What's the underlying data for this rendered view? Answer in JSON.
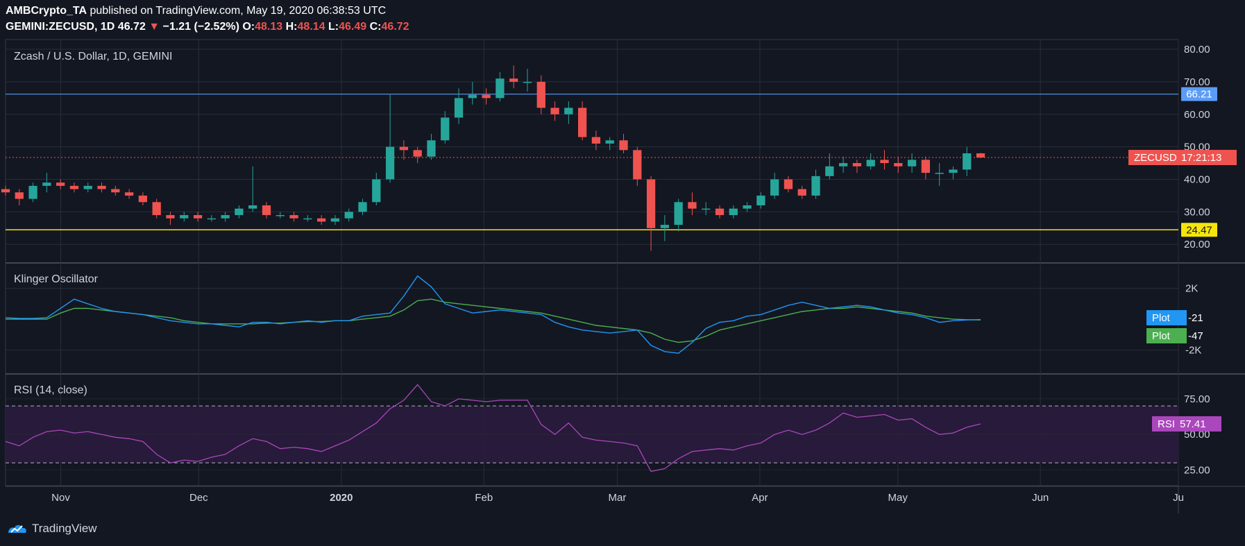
{
  "header": {
    "publisher": "AMBCrypto_TA",
    "published_text": "published on TradingView.com, May 19, 2020 06:38:53 UTC",
    "symbol": "GEMINI:ZECUSD, 1D",
    "last": "46.72",
    "change_arrow": "▼",
    "change": "−1.21 (−2.52%)",
    "o_label": "O:",
    "o_value": "48.13",
    "h_label": "H:",
    "h_value": "48.14",
    "l_label": "L:",
    "l_value": "46.49",
    "c_label": "C:",
    "c_value": "46.72"
  },
  "footer": {
    "brand": "TradingView",
    "logo_icon": "tradingview-logo-icon"
  },
  "colors": {
    "background": "#131722",
    "grid": "#2a2e39",
    "up": "#26a69a",
    "down": "#ef5350",
    "resistance": "#5b9cf6",
    "support": "#f5e50a",
    "klinger": "#2196f3",
    "signal": "#4caf50",
    "rsi": "#ab47bc",
    "rsi_band": "#2a1b3d"
  },
  "chart_data": [
    {
      "type": "candlestick",
      "title": "Zcash / U.S. Dollar, 1D, GEMINI",
      "x": [
        "Oct 20",
        "Oct 23",
        "Oct 26",
        "Oct 29",
        "Nov 1",
        "Nov 4",
        "Nov 7",
        "Nov 10",
        "Nov 13",
        "Nov 16",
        "Nov 19",
        "Nov 22",
        "Nov 25",
        "Nov 28",
        "Dec 1",
        "Dec 4",
        "Dec 7",
        "Dec 10",
        "Dec 13",
        "Dec 16",
        "Dec 19",
        "Dec 22",
        "Dec 25",
        "Dec 28",
        "Dec 31",
        "Jan 3",
        "Jan 6",
        "Jan 9",
        "Jan 12",
        "Jan 15",
        "Jan 18",
        "Jan 21",
        "Jan 24",
        "Jan 27",
        "Jan 30",
        "Feb 2",
        "Feb 5",
        "Feb 8",
        "Feb 11",
        "Feb 14",
        "Feb 17",
        "Feb 20",
        "Feb 23",
        "Feb 26",
        "Feb 29",
        "Mar 3",
        "Mar 6",
        "Mar 9",
        "Mar 12",
        "Mar 15",
        "Mar 18",
        "Mar 21",
        "Mar 24",
        "Mar 27",
        "Mar 30",
        "Apr 2",
        "Apr 5",
        "Apr 8",
        "Apr 11",
        "Apr 14",
        "Apr 17",
        "Apr 20",
        "Apr 23",
        "Apr 26",
        "Apr 29",
        "May 2",
        "May 5",
        "May 8",
        "May 11",
        "May 14",
        "May 17",
        "May 19"
      ],
      "open": [
        37,
        36,
        34,
        38,
        39,
        38,
        37,
        38,
        37,
        36,
        35,
        33,
        29,
        28,
        29,
        28,
        28,
        29,
        31,
        32,
        29,
        29,
        28,
        28,
        27,
        28,
        30,
        33,
        40,
        50,
        49,
        47,
        52,
        59,
        65,
        66,
        65,
        71,
        70,
        70,
        62,
        60,
        62,
        53,
        51,
        52,
        49,
        40,
        25,
        26,
        33,
        31,
        31,
        29,
        31,
        32,
        35,
        40,
        37,
        35,
        41,
        44,
        45,
        44,
        46,
        45,
        44,
        46,
        42,
        42,
        43,
        48
      ],
      "close": [
        36,
        34,
        38,
        39,
        38,
        37,
        38,
        37,
        36,
        35,
        33,
        29,
        28,
        29,
        28,
        28,
        29,
        31,
        32,
        29,
        29,
        28,
        28,
        27,
        28,
        30,
        33,
        40,
        50,
        49,
        47,
        52,
        59,
        65,
        66,
        65,
        71,
        70,
        70,
        62,
        60,
        62,
        53,
        51,
        52,
        49,
        40,
        25,
        26,
        33,
        31,
        31,
        29,
        31,
        32,
        35,
        40,
        37,
        35,
        41,
        44,
        45,
        44,
        46,
        45,
        44,
        46,
        42,
        42,
        43,
        48,
        46.72
      ],
      "high": [
        38,
        37,
        39,
        42,
        40,
        39,
        39,
        39,
        38,
        37,
        36,
        34,
        30,
        30,
        30,
        29,
        30,
        32,
        44,
        33,
        30,
        30,
        29,
        29,
        29,
        31,
        34,
        42,
        66,
        52,
        50,
        54,
        61,
        68,
        70,
        68,
        73,
        75,
        74,
        72,
        64,
        64,
        64,
        55,
        53,
        54,
        50,
        41,
        29,
        34,
        36,
        33,
        32,
        32,
        33,
        36,
        42,
        41,
        38,
        43,
        48,
        47,
        46,
        48,
        49,
        47,
        48,
        47,
        45,
        44,
        50,
        48.14
      ],
      "low": [
        35,
        32,
        33,
        36,
        37,
        36,
        36,
        36,
        35,
        34,
        32,
        28,
        26,
        27,
        27,
        27,
        27,
        28,
        30,
        28,
        28,
        27,
        27,
        26,
        26,
        27,
        29,
        32,
        39,
        46,
        45,
        46,
        51,
        57,
        63,
        63,
        64,
        68,
        67,
        60,
        58,
        57,
        52,
        49,
        49,
        48,
        38,
        18,
        21,
        24,
        29,
        29,
        28,
        28,
        30,
        31,
        34,
        36,
        34,
        34,
        40,
        42,
        42,
        43,
        43,
        42,
        42,
        40,
        38,
        40,
        41,
        46.49
      ],
      "y_ticks": [
        20,
        30,
        40,
        50,
        60,
        70,
        80
      ],
      "y_tick_labels": [
        "20.00",
        "30.00",
        "40.00",
        "50.00",
        "60.00",
        "70.00",
        "80.00"
      ],
      "ylim": [
        14.5,
        83
      ],
      "x_tick_labels": [
        "Nov",
        "Dec",
        "2020",
        "Feb",
        "Mar",
        "Apr",
        "May",
        "Jun",
        "Ju"
      ],
      "x_tick_dates": [
        "2019-11-01",
        "2019-12-01",
        "2020-01-01",
        "2020-02-01",
        "2020-03-01",
        "2020-04-01",
        "2020-05-01",
        "2020-06-01",
        "2020-07-01"
      ],
      "x_range": [
        "2019-10-20",
        "2020-07-01"
      ],
      "levels": [
        {
          "name": "resistance",
          "value": 66.21,
          "label": "66.21"
        },
        {
          "name": "support",
          "value": 24.47,
          "label": "24.47"
        }
      ],
      "price_line": {
        "value": 46.72,
        "symbol_label": "ZECUSD",
        "countdown": "17:21:13"
      }
    },
    {
      "type": "line",
      "title": "Klinger Oscillator",
      "series": [
        {
          "name": "Plot",
          "values": [
            100,
            50,
            50,
            100,
            700,
            1300,
            1000,
            700,
            500,
            400,
            300,
            100,
            -100,
            -200,
            -300,
            -300,
            -400,
            -500,
            -200,
            -200,
            -300,
            -200,
            -100,
            -200,
            -100,
            -100,
            200,
            300,
            400,
            1500,
            2800,
            2100,
            1000,
            700,
            400,
            500,
            600,
            500,
            400,
            300,
            -200,
            -500,
            -700,
            -800,
            -900,
            -800,
            -700,
            -1700,
            -2100,
            -2200,
            -1500,
            -600,
            -200,
            -100,
            200,
            300,
            600,
            900,
            1100,
            900,
            700,
            800,
            900,
            800,
            600,
            400,
            300,
            100,
            -200,
            -100,
            -50,
            -21
          ],
          "last_label": "-21"
        },
        {
          "name": "Plot",
          "values": [
            0,
            0,
            0,
            0,
            400,
            700,
            700,
            600,
            500,
            400,
            300,
            200,
            100,
            -100,
            -200,
            -300,
            -300,
            -300,
            -300,
            -250,
            -250,
            -200,
            -150,
            -150,
            -100,
            -100,
            0,
            100,
            200,
            600,
            1200,
            1300,
            1100,
            1000,
            900,
            800,
            700,
            600,
            500,
            400,
            200,
            0,
            -200,
            -400,
            -500,
            -600,
            -700,
            -900,
            -1300,
            -1500,
            -1400,
            -1100,
            -700,
            -500,
            -300,
            -100,
            100,
            300,
            500,
            600,
            700,
            700,
            800,
            700,
            600,
            500,
            400,
            200,
            100,
            0,
            -30,
            -47
          ],
          "last_label": "-47"
        }
      ],
      "y_ticks": [
        -2000,
        2000
      ],
      "y_tick_labels": [
        "-2K",
        "2K"
      ],
      "ylim": [
        -3500,
        3600
      ]
    },
    {
      "type": "line",
      "title": "RSI (14, close)",
      "series": [
        {
          "name": "RSI",
          "values": [
            45,
            42,
            48,
            52,
            53,
            51,
            52,
            50,
            48,
            47,
            45,
            36,
            30,
            32,
            31,
            34,
            36,
            42,
            47,
            45,
            40,
            41,
            40,
            38,
            42,
            46,
            52,
            58,
            68,
            74,
            85,
            73,
            70,
            75,
            74,
            73,
            74,
            74,
            74,
            57,
            50,
            58,
            48,
            46,
            45,
            44,
            42,
            24,
            26,
            33,
            38,
            39,
            40,
            39,
            42,
            44,
            50,
            53,
            50,
            53,
            58,
            65,
            62,
            63,
            64,
            60,
            61,
            55,
            50,
            51,
            55,
            57.41
          ],
          "last_label": "57.41"
        }
      ],
      "y_ticks": [
        25,
        50,
        75
      ],
      "y_tick_labels": [
        "25.00",
        "50.00",
        "75.00"
      ],
      "band": [
        30,
        70
      ],
      "ylim": [
        14,
        92
      ]
    }
  ]
}
